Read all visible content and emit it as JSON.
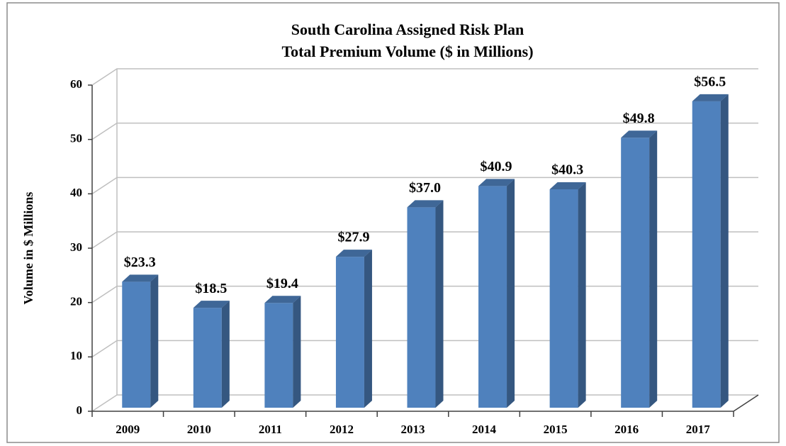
{
  "chart_data": {
    "type": "bar3d",
    "title": "South Carolina Assigned Risk Plan",
    "subtitle": "Total Premium Volume ($ in Millions)",
    "y_label": "Volume in $ Millions",
    "categories": [
      "2009",
      "2010",
      "2011",
      "2012",
      "2013",
      "2014",
      "2015",
      "2016",
      "2017"
    ],
    "values": [
      23.3,
      18.5,
      19.4,
      27.9,
      37.0,
      40.9,
      40.3,
      49.8,
      56.5
    ],
    "value_labels": [
      "$23.3",
      "$18.5",
      "$19.4",
      "$27.9",
      "$37.0",
      "$40.9",
      "$40.3",
      "$49.8",
      "$56.5"
    ],
    "color": "#4f81bd",
    "ylim": [
      0,
      60
    ],
    "yticks": [
      0,
      10,
      20,
      30,
      40,
      50,
      60
    ],
    "grid": true
  }
}
